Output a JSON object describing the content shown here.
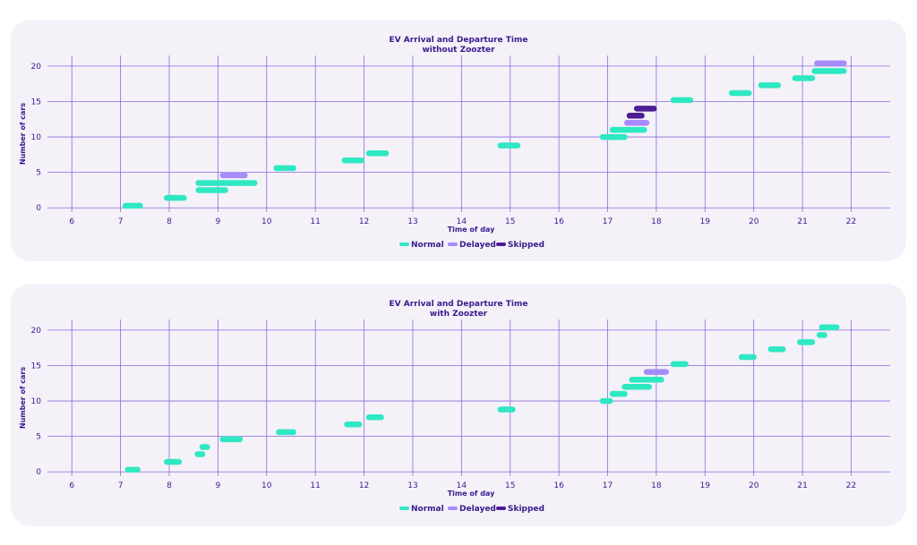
{
  "colors": {
    "Normal": "#2ee8c2",
    "Delayed": "#a78bfa",
    "Skipped": "#4c1d95",
    "grid": "#8a6bde",
    "text": "#3a1a8c"
  },
  "chart_data": [
    {
      "type": "range-bar",
      "title_line1": "EV Arrival and Departure Time",
      "title_line2": "without Zoozter",
      "xlabel": "Time of day",
      "ylabel": "Number of cars",
      "xlim": [
        5.5,
        22.8
      ],
      "ylim": [
        -0.6,
        21.5
      ],
      "xticks": [
        6,
        7,
        8,
        9,
        10,
        11,
        12,
        13,
        14,
        15,
        16,
        17,
        18,
        19,
        20,
        21,
        22
      ],
      "yticks": [
        0,
        5,
        10,
        15,
        20
      ],
      "legend": [
        "Normal",
        "Delayed",
        "Skipped"
      ],
      "segments": [
        {
          "y": 0.3,
          "x0": 7.1,
          "x1": 7.4,
          "status": "Normal"
        },
        {
          "y": 1.4,
          "x0": 7.95,
          "x1": 8.3,
          "status": "Normal"
        },
        {
          "y": 2.5,
          "x0": 8.6,
          "x1": 9.15,
          "status": "Normal"
        },
        {
          "y": 3.5,
          "x0": 8.6,
          "x1": 9.75,
          "status": "Normal"
        },
        {
          "y": 4.6,
          "x0": 9.1,
          "x1": 9.55,
          "status": "Delayed"
        },
        {
          "y": 5.6,
          "x0": 10.2,
          "x1": 10.55,
          "status": "Normal"
        },
        {
          "y": 6.7,
          "x0": 11.6,
          "x1": 11.95,
          "status": "Normal"
        },
        {
          "y": 7.7,
          "x0": 12.1,
          "x1": 12.45,
          "status": "Normal"
        },
        {
          "y": 8.8,
          "x0": 14.8,
          "x1": 15.15,
          "status": "Normal"
        },
        {
          "y": 10,
          "x0": 16.9,
          "x1": 17.35,
          "status": "Normal"
        },
        {
          "y": 11,
          "x0": 17.1,
          "x1": 17.75,
          "status": "Normal"
        },
        {
          "y": 12,
          "x0": 17.4,
          "x1": 17.8,
          "status": "Delayed"
        },
        {
          "y": 13,
          "x0": 17.45,
          "x1": 17.7,
          "status": "Skipped"
        },
        {
          "y": 14,
          "x0": 17.6,
          "x1": 17.95,
          "status": "Skipped"
        },
        {
          "y": 15.2,
          "x0": 18.35,
          "x1": 18.7,
          "status": "Normal"
        },
        {
          "y": 16.2,
          "x0": 19.55,
          "x1": 19.9,
          "status": "Normal"
        },
        {
          "y": 17.3,
          "x0": 20.15,
          "x1": 20.5,
          "status": "Normal"
        },
        {
          "y": 18.3,
          "x0": 20.85,
          "x1": 21.2,
          "status": "Normal"
        },
        {
          "y": 19.3,
          "x0": 21.25,
          "x1": 21.85,
          "status": "Normal"
        },
        {
          "y": 20.4,
          "x0": 21.3,
          "x1": 21.85,
          "status": "Delayed"
        }
      ]
    },
    {
      "type": "range-bar",
      "title_line1": "EV Arrival and Departure Time",
      "title_line2": "with Zoozter",
      "xlabel": "Time of day",
      "ylabel": "Number of cars",
      "xlim": [
        5.5,
        22.8
      ],
      "ylim": [
        -0.6,
        21.5
      ],
      "xticks": [
        6,
        7,
        8,
        9,
        10,
        11,
        12,
        13,
        14,
        15,
        16,
        17,
        18,
        19,
        20,
        21,
        22
      ],
      "yticks": [
        0,
        5,
        10,
        15,
        20
      ],
      "legend": [
        "Normal",
        "Delayed",
        "Skipped"
      ],
      "segments": [
        {
          "y": 0.3,
          "x0": 7.15,
          "x1": 7.35,
          "status": "Normal"
        },
        {
          "y": 1.4,
          "x0": 7.95,
          "x1": 8.2,
          "status": "Normal"
        },
        {
          "y": 2.5,
          "x0": 8.58,
          "x1": 8.68,
          "status": "Normal"
        },
        {
          "y": 3.5,
          "x0": 8.68,
          "x1": 8.78,
          "status": "Normal"
        },
        {
          "y": 4.6,
          "x0": 9.1,
          "x1": 9.45,
          "status": "Normal"
        },
        {
          "y": 5.6,
          "x0": 10.25,
          "x1": 10.55,
          "status": "Normal"
        },
        {
          "y": 6.7,
          "x0": 11.65,
          "x1": 11.9,
          "status": "Normal"
        },
        {
          "y": 7.7,
          "x0": 12.1,
          "x1": 12.35,
          "status": "Normal"
        },
        {
          "y": 8.8,
          "x0": 14.8,
          "x1": 15.05,
          "status": "Normal"
        },
        {
          "y": 10,
          "x0": 16.9,
          "x1": 17.05,
          "status": "Normal"
        },
        {
          "y": 11,
          "x0": 17.1,
          "x1": 17.35,
          "status": "Normal"
        },
        {
          "y": 12,
          "x0": 17.35,
          "x1": 17.85,
          "status": "Normal"
        },
        {
          "y": 13,
          "x0": 17.5,
          "x1": 18.1,
          "status": "Normal"
        },
        {
          "y": 14.1,
          "x0": 17.8,
          "x1": 18.2,
          "status": "Delayed"
        },
        {
          "y": 15.2,
          "x0": 18.35,
          "x1": 18.6,
          "status": "Normal"
        },
        {
          "y": 16.2,
          "x0": 19.75,
          "x1": 20.0,
          "status": "Normal"
        },
        {
          "y": 17.3,
          "x0": 20.35,
          "x1": 20.6,
          "status": "Normal"
        },
        {
          "y": 18.3,
          "x0": 20.95,
          "x1": 21.2,
          "status": "Normal"
        },
        {
          "y": 19.3,
          "x0": 21.35,
          "x1": 21.45,
          "status": "Normal"
        },
        {
          "y": 20.4,
          "x0": 21.4,
          "x1": 21.7,
          "status": "Normal"
        }
      ]
    }
  ]
}
